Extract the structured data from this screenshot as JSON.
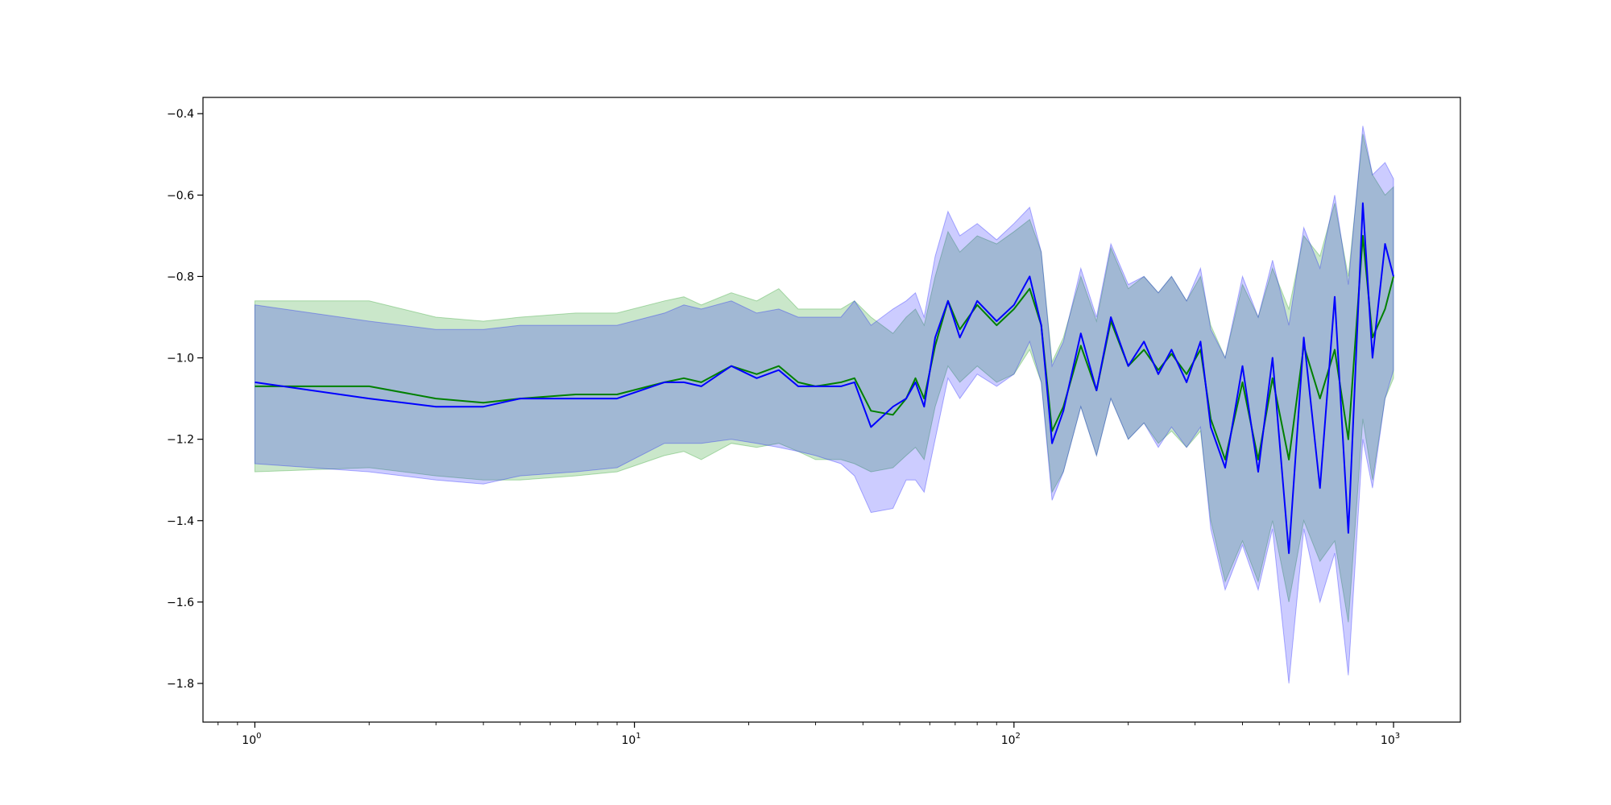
{
  "chart_data": {
    "type": "line",
    "title": "",
    "xlabel": "",
    "ylabel": "",
    "xscale": "log",
    "xlim": [
      0.73,
      1500
    ],
    "ylim": [
      -1.895,
      -0.36
    ],
    "x_ticks": [
      {
        "value": 1,
        "base": "10",
        "exp": "0"
      },
      {
        "value": 10,
        "base": "10",
        "exp": "1"
      },
      {
        "value": 100,
        "base": "10",
        "exp": "2"
      },
      {
        "value": 1000,
        "base": "10",
        "exp": "3"
      }
    ],
    "y_ticks": [
      {
        "value": -0.4,
        "label": "−0.4"
      },
      {
        "value": -0.6,
        "label": "−0.6"
      },
      {
        "value": -0.8,
        "label": "−0.8"
      },
      {
        "value": -1.0,
        "label": "−1.0"
      },
      {
        "value": -1.2,
        "label": "−1.2"
      },
      {
        "value": -1.4,
        "label": "−1.4"
      },
      {
        "value": -1.6,
        "label": "−1.6"
      },
      {
        "value": -1.8,
        "label": "−1.8"
      }
    ],
    "grid": false,
    "legend": "none",
    "series": [
      {
        "color": "#008000",
        "band_color": "#2ca02c",
        "band_opacity": 0.25,
        "points": [
          [
            1,
            -1.07,
            -1.28,
            -0.86
          ],
          [
            2,
            -1.07,
            -1.27,
            -0.86
          ],
          [
            3,
            -1.1,
            -1.29,
            -0.9
          ],
          [
            4,
            -1.11,
            -1.3,
            -0.91
          ],
          [
            5,
            -1.1,
            -1.3,
            -0.9
          ],
          [
            7,
            -1.09,
            -1.29,
            -0.89
          ],
          [
            9,
            -1.09,
            -1.28,
            -0.89
          ],
          [
            12,
            -1.06,
            -1.24,
            -0.86
          ],
          [
            13.5,
            -1.05,
            -1.23,
            -0.85
          ],
          [
            15,
            -1.06,
            -1.25,
            -0.87
          ],
          [
            18,
            -1.02,
            -1.21,
            -0.84
          ],
          [
            21,
            -1.04,
            -1.22,
            -0.86
          ],
          [
            24,
            -1.02,
            -1.21,
            -0.83
          ],
          [
            27,
            -1.06,
            -1.23,
            -0.88
          ],
          [
            30,
            -1.07,
            -1.25,
            -0.88
          ],
          [
            35,
            -1.06,
            -1.25,
            -0.88
          ],
          [
            38,
            -1.05,
            -1.26,
            -0.86
          ],
          [
            42,
            -1.13,
            -1.28,
            -0.9
          ],
          [
            48,
            -1.14,
            -1.27,
            -0.94
          ],
          [
            52,
            -1.1,
            -1.24,
            -0.9
          ],
          [
            55,
            -1.05,
            -1.22,
            -0.88
          ],
          [
            58,
            -1.1,
            -1.25,
            -0.92
          ],
          [
            62,
            -0.97,
            -1.12,
            -0.8
          ],
          [
            67,
            -0.86,
            -1.02,
            -0.69
          ],
          [
            72,
            -0.93,
            -1.06,
            -0.74
          ],
          [
            80,
            -0.87,
            -1.02,
            -0.7
          ],
          [
            90,
            -0.92,
            -1.06,
            -0.72
          ],
          [
            100,
            -0.88,
            -1.04,
            -0.69
          ],
          [
            110,
            -0.83,
            -0.98,
            -0.66
          ],
          [
            118,
            -0.92,
            -1.06,
            -0.74
          ],
          [
            126,
            -1.18,
            -1.33,
            -1.01
          ],
          [
            135,
            -1.12,
            -1.28,
            -0.95
          ],
          [
            150,
            -0.97,
            -1.12,
            -0.8
          ],
          [
            165,
            -1.08,
            -1.24,
            -0.91
          ],
          [
            180,
            -0.91,
            -1.1,
            -0.73
          ],
          [
            200,
            -1.02,
            -1.2,
            -0.83
          ],
          [
            220,
            -0.98,
            -1.16,
            -0.8
          ],
          [
            240,
            -1.03,
            -1.21,
            -0.84
          ],
          [
            260,
            -0.99,
            -1.18,
            -0.8
          ],
          [
            285,
            -1.04,
            -1.22,
            -0.86
          ],
          [
            310,
            -0.98,
            -1.18,
            -0.8
          ],
          [
            330,
            -1.15,
            -1.4,
            -0.92
          ],
          [
            360,
            -1.25,
            -1.55,
            -1.0
          ],
          [
            400,
            -1.06,
            -1.45,
            -0.82
          ],
          [
            440,
            -1.25,
            -1.55,
            -0.9
          ],
          [
            480,
            -1.05,
            -1.4,
            -0.78
          ],
          [
            530,
            -1.25,
            -1.6,
            -0.88
          ],
          [
            580,
            -0.97,
            -1.4,
            -0.7
          ],
          [
            640,
            -1.1,
            -1.5,
            -0.75
          ],
          [
            700,
            -0.98,
            -1.45,
            -0.62
          ],
          [
            760,
            -1.2,
            -1.65,
            -0.8
          ],
          [
            830,
            -0.7,
            -1.15,
            -0.45
          ],
          [
            880,
            -0.95,
            -1.3,
            -0.55
          ],
          [
            950,
            -0.88,
            -1.1,
            -0.6
          ],
          [
            1000,
            -0.8,
            -1.05,
            -0.58
          ]
        ]
      },
      {
        "color": "#0000ff",
        "band_color": "#0000ff",
        "band_opacity": 0.2,
        "points": [
          [
            1,
            -1.06,
            -1.26,
            -0.87
          ],
          [
            2,
            -1.1,
            -1.28,
            -0.91
          ],
          [
            3,
            -1.12,
            -1.3,
            -0.93
          ],
          [
            4,
            -1.12,
            -1.31,
            -0.93
          ],
          [
            5,
            -1.1,
            -1.29,
            -0.92
          ],
          [
            7,
            -1.1,
            -1.28,
            -0.92
          ],
          [
            9,
            -1.1,
            -1.27,
            -0.92
          ],
          [
            12,
            -1.06,
            -1.21,
            -0.89
          ],
          [
            13.5,
            -1.06,
            -1.21,
            -0.87
          ],
          [
            15,
            -1.07,
            -1.21,
            -0.88
          ],
          [
            18,
            -1.02,
            -1.2,
            -0.86
          ],
          [
            21,
            -1.05,
            -1.21,
            -0.89
          ],
          [
            24,
            -1.03,
            -1.22,
            -0.88
          ],
          [
            27,
            -1.07,
            -1.23,
            -0.9
          ],
          [
            30,
            -1.07,
            -1.24,
            -0.9
          ],
          [
            35,
            -1.07,
            -1.26,
            -0.9
          ],
          [
            38,
            -1.06,
            -1.29,
            -0.86
          ],
          [
            42,
            -1.17,
            -1.38,
            -0.92
          ],
          [
            48,
            -1.12,
            -1.37,
            -0.88
          ],
          [
            52,
            -1.1,
            -1.3,
            -0.86
          ],
          [
            55,
            -1.06,
            -1.3,
            -0.84
          ],
          [
            58,
            -1.12,
            -1.33,
            -0.9
          ],
          [
            62,
            -0.95,
            -1.2,
            -0.75
          ],
          [
            67,
            -0.86,
            -1.05,
            -0.64
          ],
          [
            72,
            -0.95,
            -1.1,
            -0.7
          ],
          [
            80,
            -0.86,
            -1.04,
            -0.67
          ],
          [
            90,
            -0.91,
            -1.07,
            -0.71
          ],
          [
            100,
            -0.87,
            -1.04,
            -0.67
          ],
          [
            110,
            -0.8,
            -0.96,
            -0.63
          ],
          [
            118,
            -0.92,
            -1.06,
            -0.74
          ],
          [
            126,
            -1.21,
            -1.35,
            -1.02
          ],
          [
            135,
            -1.13,
            -1.28,
            -0.96
          ],
          [
            150,
            -0.94,
            -1.12,
            -0.78
          ],
          [
            165,
            -1.08,
            -1.24,
            -0.9
          ],
          [
            180,
            -0.9,
            -1.1,
            -0.72
          ],
          [
            200,
            -1.02,
            -1.2,
            -0.82
          ],
          [
            220,
            -0.96,
            -1.16,
            -0.8
          ],
          [
            240,
            -1.04,
            -1.22,
            -0.84
          ],
          [
            260,
            -0.98,
            -1.17,
            -0.8
          ],
          [
            285,
            -1.06,
            -1.22,
            -0.86
          ],
          [
            310,
            -0.96,
            -1.17,
            -0.78
          ],
          [
            330,
            -1.17,
            -1.42,
            -0.93
          ],
          [
            360,
            -1.27,
            -1.57,
            -1.0
          ],
          [
            400,
            -1.02,
            -1.46,
            -0.8
          ],
          [
            440,
            -1.28,
            -1.57,
            -0.9
          ],
          [
            480,
            -1.0,
            -1.42,
            -0.76
          ],
          [
            530,
            -1.48,
            -1.8,
            -0.92
          ],
          [
            580,
            -0.95,
            -1.42,
            -0.68
          ],
          [
            640,
            -1.32,
            -1.6,
            -0.78
          ],
          [
            700,
            -0.85,
            -1.48,
            -0.6
          ],
          [
            760,
            -1.43,
            -1.78,
            -0.82
          ],
          [
            830,
            -0.62,
            -1.2,
            -0.43
          ],
          [
            880,
            -1.0,
            -1.32,
            -0.55
          ],
          [
            950,
            -0.72,
            -1.1,
            -0.52
          ],
          [
            1000,
            -0.8,
            -1.03,
            -0.56
          ]
        ]
      }
    ]
  }
}
